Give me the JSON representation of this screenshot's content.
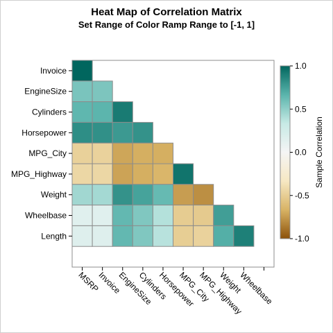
{
  "title": "Heat Map of Correlation Matrix",
  "subtitle": "Set Range of Color Ramp Range to [-1, 1]",
  "chart_data": {
    "type": "heatmap",
    "variables": [
      "MSRP",
      "Invoice",
      "EngineSize",
      "Cylinders",
      "Horsepower",
      "MPG_City",
      "MPG_Highway",
      "Weight",
      "Wheelbase",
      "Length"
    ],
    "y_rows": [
      "Invoice",
      "EngineSize",
      "Cylinders",
      "Horsepower",
      "MPG_City",
      "MPG_Highway",
      "Weight",
      "Wheelbase",
      "Length"
    ],
    "x_columns": [
      "MSRP",
      "Invoice",
      "EngineSize",
      "Cylinders",
      "Horsepower",
      "MPG_City",
      "MPG_Highway",
      "Weight",
      "Wheelbase"
    ],
    "matrix": [
      [
        1.0
      ],
      [
        0.57,
        0.56
      ],
      [
        0.65,
        0.66,
        0.91
      ],
      [
        0.83,
        0.82,
        0.78,
        0.81
      ],
      [
        -0.48,
        -0.47,
        -0.71,
        -0.68,
        -0.68
      ],
      [
        -0.44,
        -0.44,
        -0.72,
        -0.68,
        -0.65,
        0.94
      ],
      [
        0.45,
        0.44,
        0.81,
        0.74,
        0.63,
        -0.74,
        -0.79
      ],
      [
        0.15,
        0.15,
        0.64,
        0.55,
        0.39,
        -0.51,
        -0.52,
        0.76
      ],
      [
        0.17,
        0.17,
        0.64,
        0.55,
        0.38,
        -0.5,
        -0.47,
        0.69,
        0.89
      ]
    ],
    "color_range": [
      -1,
      1
    ],
    "color_ramp": [
      "#8c510a",
      "#d8b365",
      "#f6e8c3",
      "#f5f5f5",
      "#c7eae5",
      "#5ab4ac",
      "#01665e"
    ],
    "legend": {
      "title": "Sample Correlation",
      "ticks": [
        "1.0",
        "0.5",
        "0.0",
        "-0.5",
        "-1.0"
      ],
      "tick_values": [
        1.0,
        0.5,
        0.0,
        -0.5,
        -1.0
      ],
      "placement": "right"
    }
  }
}
